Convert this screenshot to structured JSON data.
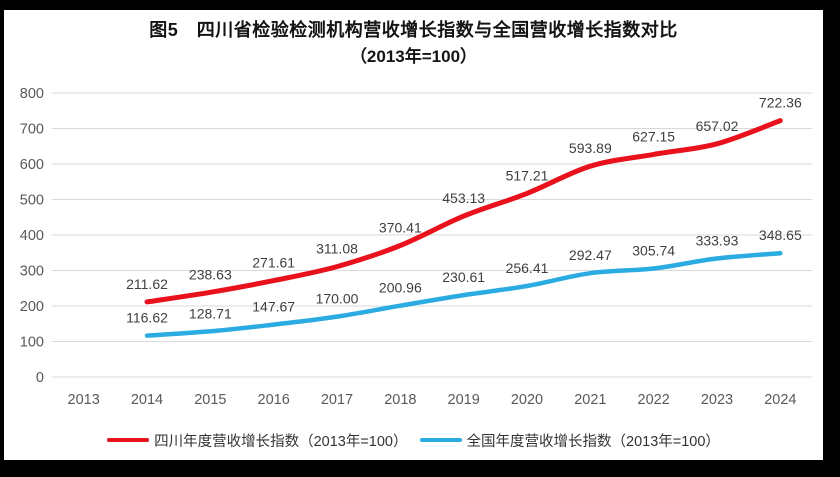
{
  "page": {
    "background": "#000000",
    "canvas_background": "#ffffff"
  },
  "chart_data": {
    "type": "line",
    "title": "图5　四川省检验检测机构营收增长指数与全国营收增长指数对比",
    "subtitle": "（2013年=100）",
    "categories": [
      "2013",
      "2014",
      "2015",
      "2016",
      "2017",
      "2018",
      "2019",
      "2020",
      "2021",
      "2022",
      "2023",
      "2024"
    ],
    "series": [
      {
        "name": "四川年度营收增长指数（2013年=100）",
        "color": "#e8111c",
        "start_index": 1,
        "values": [
          211.62,
          238.63,
          271.61,
          311.08,
          370.41,
          453.13,
          517.21,
          593.89,
          627.15,
          657.02,
          722.36
        ]
      },
      {
        "name": "全国年度营收增长指数（2013年=100）",
        "color": "#2aabe2",
        "start_index": 1,
        "values": [
          116.62,
          128.71,
          147.67,
          170.0,
          200.96,
          230.61,
          256.41,
          292.47,
          305.74,
          333.93,
          348.65
        ]
      }
    ],
    "ylim": [
      0,
      800
    ],
    "ytick_step": 100,
    "yticks": [
      "0",
      "100",
      "200",
      "300",
      "400",
      "500",
      "600",
      "700",
      "800"
    ],
    "grid": true,
    "grid_color": "#d9d9d9",
    "axis_label_color": "#595959",
    "data_label_color": "#404040",
    "legend_position": "bottom",
    "value_labels": true,
    "value_label_decimals": 2
  }
}
